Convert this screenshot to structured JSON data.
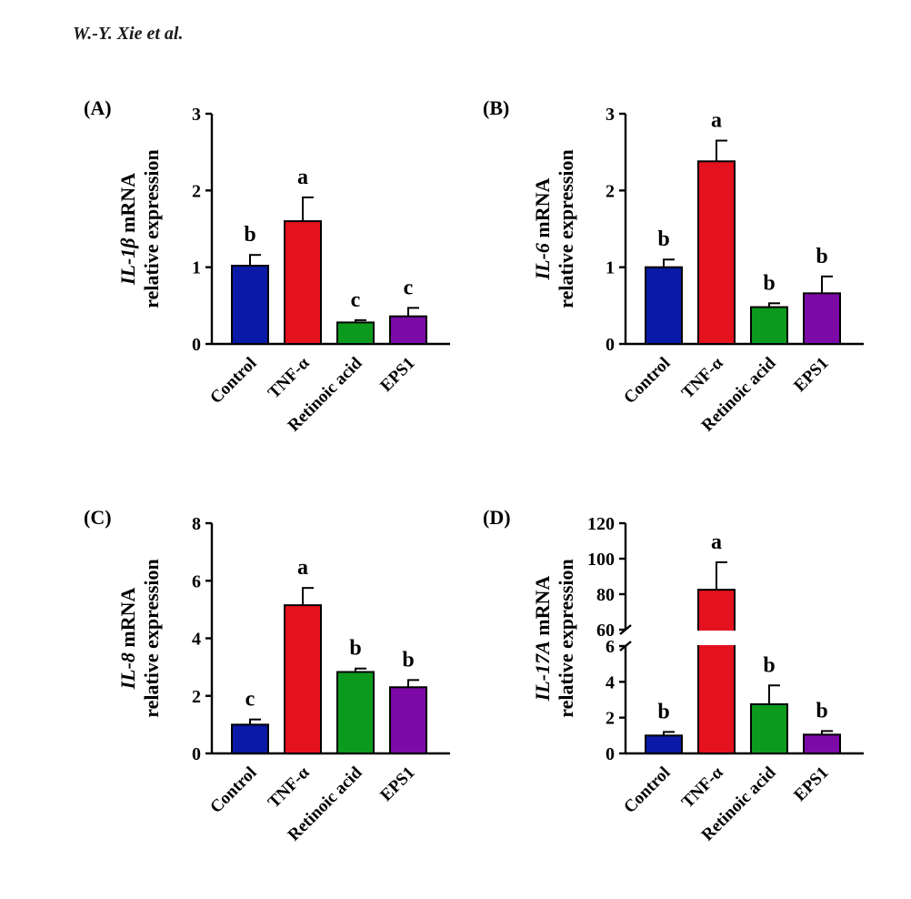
{
  "header": {
    "authors": "W.-Y. Xie et al."
  },
  "colors": {
    "Control": "#0a1aa6",
    "TNF-α": "#e3121e",
    "Retinoic acid": "#0c9a1e",
    "EPS1": "#7b0aa6"
  },
  "chart_data": [
    {
      "panel_label": "(A)",
      "type": "bar",
      "ylabel_gene": "IL-1β",
      "ylabel_rest": " mRNA",
      "ylabel_line2": "relative expression",
      "ylim": [
        0,
        3
      ],
      "yticks": [
        "0",
        "1",
        "2",
        "3"
      ],
      "categories": [
        "Control",
        "TNF-α",
        "Retinoic acid",
        "EPS1"
      ],
      "values": [
        1.02,
        1.6,
        0.28,
        0.36
      ],
      "errors": [
        0.14,
        0.31,
        0.03,
        0.11
      ],
      "letters": [
        "b",
        "a",
        "c",
        "c"
      ]
    },
    {
      "panel_label": "(B)",
      "type": "bar",
      "ylabel_gene": "IL-6",
      "ylabel_rest": " mRNA",
      "ylabel_line2": "relative expression",
      "ylim": [
        0,
        3
      ],
      "yticks": [
        "0",
        "1",
        "2",
        "3"
      ],
      "categories": [
        "Control",
        "TNF-α",
        "Retinoic acid",
        "EPS1"
      ],
      "values": [
        1.0,
        2.38,
        0.48,
        0.66
      ],
      "errors": [
        0.1,
        0.27,
        0.05,
        0.22
      ],
      "letters": [
        "b",
        "a",
        "b",
        "b"
      ]
    },
    {
      "panel_label": "(C)",
      "type": "bar",
      "ylabel_gene": "IL-8",
      "ylabel_rest": " mRNA",
      "ylabel_line2": "relative expression",
      "ylim": [
        0,
        8
      ],
      "yticks": [
        "0",
        "2",
        "4",
        "6",
        "8"
      ],
      "categories": [
        "Control",
        "TNF-α",
        "Retinoic acid",
        "EPS1"
      ],
      "values": [
        1.0,
        5.15,
        2.83,
        2.3
      ],
      "errors": [
        0.18,
        0.6,
        0.12,
        0.25
      ],
      "letters": [
        "c",
        "a",
        "b",
        "b"
      ]
    },
    {
      "panel_label": "(D)",
      "type": "bar",
      "ylabel_gene": "IL-17A",
      "ylabel_rest": " mRNA",
      "ylabel_line2": "relative expression",
      "axis_break": {
        "lower": [
          0,
          6
        ],
        "upper": [
          60,
          120
        ]
      },
      "yticks": [
        "0",
        "2",
        "4",
        "6",
        "60",
        "80",
        "100",
        "120"
      ],
      "categories": [
        "Control",
        "TNF-α",
        "Retinoic acid",
        "EPS1"
      ],
      "values": [
        1.0,
        82.5,
        2.75,
        1.05
      ],
      "errors": [
        0.2,
        15.5,
        1.05,
        0.2
      ],
      "letters": [
        "b",
        "a",
        "b",
        "b"
      ]
    }
  ]
}
